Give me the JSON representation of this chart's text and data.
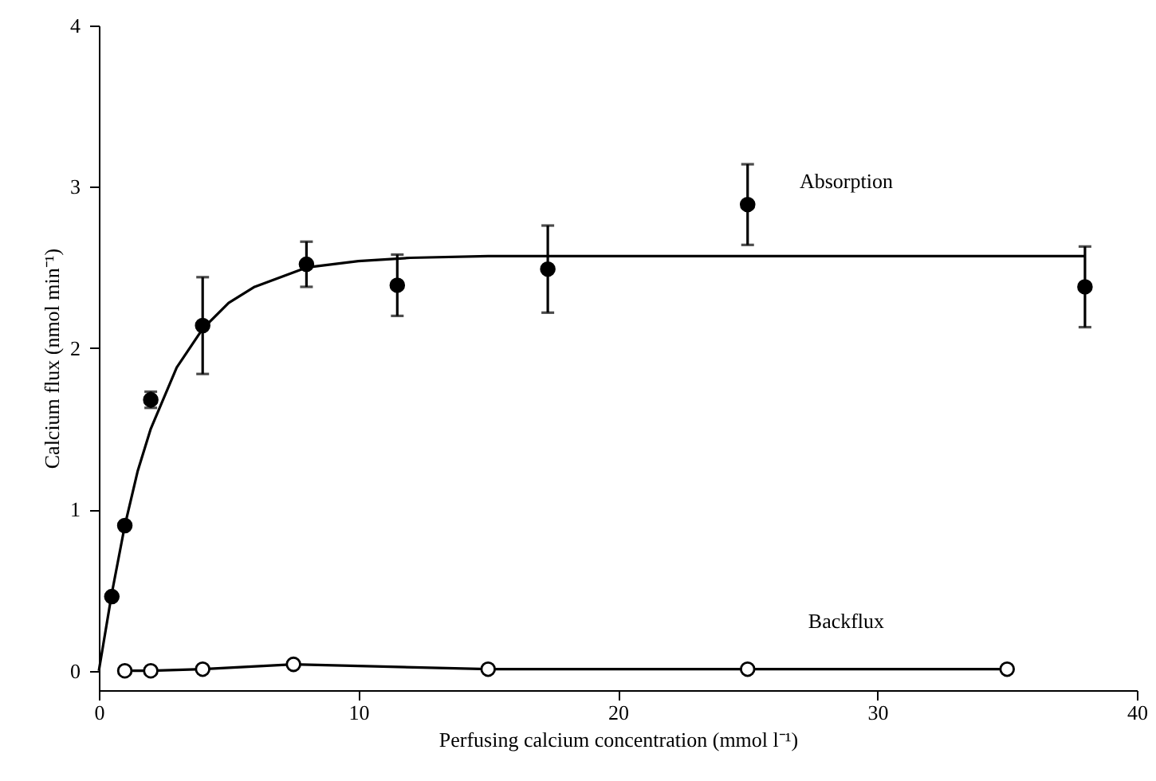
{
  "chart_data": {
    "type": "scatter",
    "xlabel": "Perfusing calcium concentration (mmol l⁻¹)",
    "ylabel": "Calcium flux (nmol min⁻¹)",
    "xlim": [
      0,
      40
    ],
    "xticks": [
      0,
      10,
      20,
      30,
      40
    ],
    "ylim": [
      -0.12,
      4
    ],
    "yticks": [
      0,
      1,
      2,
      3,
      4
    ],
    "grid": false,
    "series": [
      {
        "name": "Absorption",
        "color": "#000000",
        "marker": "circle",
        "x": [
          0.5,
          1,
          2,
          4,
          8,
          11.5,
          17.3,
          25,
          38
        ],
        "values": [
          0.46,
          0.9,
          1.68,
          2.14,
          2.52,
          2.39,
          2.49,
          2.89,
          2.38
        ],
        "errors": [
          null,
          null,
          0.05,
          0.3,
          0.14,
          0.19,
          0.27,
          0.25,
          0.25
        ]
      },
      {
        "type": "line",
        "color": "#000000",
        "marker": "none",
        "x": [
          0,
          0.5,
          1,
          1.5,
          2,
          3,
          4,
          5,
          6,
          8,
          10,
          12,
          15,
          20,
          38
        ],
        "values": [
          0,
          0.48,
          0.9,
          1.24,
          1.5,
          1.88,
          2.12,
          2.28,
          2.38,
          2.5,
          2.54,
          2.56,
          2.57,
          2.57,
          2.57
        ]
      },
      {
        "name": "Backflux",
        "type": "line",
        "color": "#000000",
        "marker": "circle",
        "x": [
          1,
          2,
          4,
          7.5,
          15,
          25,
          35
        ],
        "values": [
          0,
          0,
          0.01,
          0.04,
          0.01,
          0.01,
          0.01
        ]
      }
    ]
  }
}
